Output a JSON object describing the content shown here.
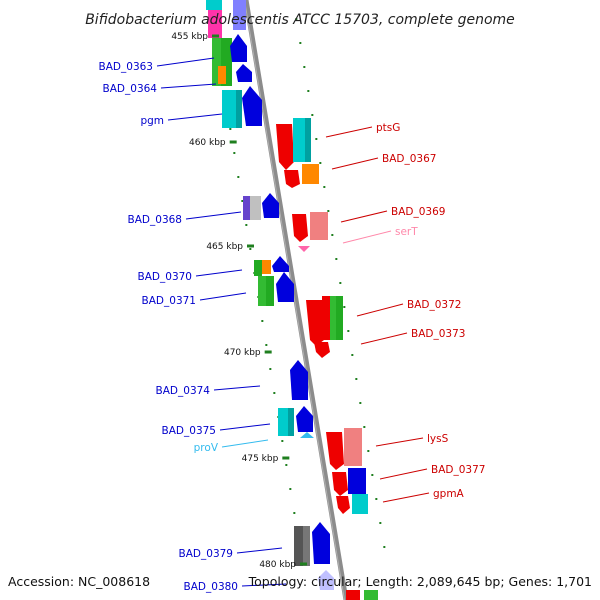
{
  "title": "Bifidobacterium adolescentis ATCC 15703, complete genome",
  "footer": {
    "accession": "Accession: NC_008618",
    "topology": "Topology: circular; Length: 2,089,645 bp; Genes: 1,701"
  },
  "colors": {
    "backbone": "#8c8c8c",
    "tick": "#1f7f1f",
    "label_left": "#0000cc",
    "label_right": "#cc0000"
  },
  "kbp_ticks": [
    {
      "label": "455 kbp"
    },
    {
      "label": "460 kbp"
    },
    {
      "label": "465 kbp"
    },
    {
      "label": "470 kbp"
    },
    {
      "label": "475 kbp"
    },
    {
      "label": "480 kbp"
    }
  ],
  "gene_labels": [
    {
      "text": "BAD_0363",
      "side": "left",
      "color": "#0000cc"
    },
    {
      "text": "BAD_0364",
      "side": "left",
      "color": "#0000cc"
    },
    {
      "text": "pgm",
      "side": "left",
      "color": "#0000cc"
    },
    {
      "text": "ptsG",
      "side": "right",
      "color": "#cc0000"
    },
    {
      "text": "BAD_0367",
      "side": "right",
      "color": "#cc0000"
    },
    {
      "text": "BAD_0368",
      "side": "left",
      "color": "#0000cc"
    },
    {
      "text": "BAD_0369",
      "side": "right",
      "color": "#cc0000"
    },
    {
      "text": "serT",
      "side": "right",
      "color": "#ff88aa"
    },
    {
      "text": "BAD_0370",
      "side": "left",
      "color": "#0000cc"
    },
    {
      "text": "BAD_0371",
      "side": "left",
      "color": "#0000cc"
    },
    {
      "text": "BAD_0372",
      "side": "right",
      "color": "#cc0000"
    },
    {
      "text": "BAD_0373",
      "side": "right",
      "color": "#cc0000"
    },
    {
      "text": "BAD_0374",
      "side": "left",
      "color": "#0000cc"
    },
    {
      "text": "BAD_0375",
      "side": "left",
      "color": "#0000cc"
    },
    {
      "text": "proV",
      "side": "left",
      "color": "#33bbee"
    },
    {
      "text": "lysS",
      "side": "right",
      "color": "#cc0000"
    },
    {
      "text": "BAD_0377",
      "side": "right",
      "color": "#cc0000"
    },
    {
      "text": "gpmA",
      "side": "right",
      "color": "#cc0000"
    },
    {
      "text": "BAD_0379",
      "side": "left",
      "color": "#0000cc"
    },
    {
      "text": "BAD_0380",
      "side": "left",
      "color": "#0000cc"
    }
  ]
}
